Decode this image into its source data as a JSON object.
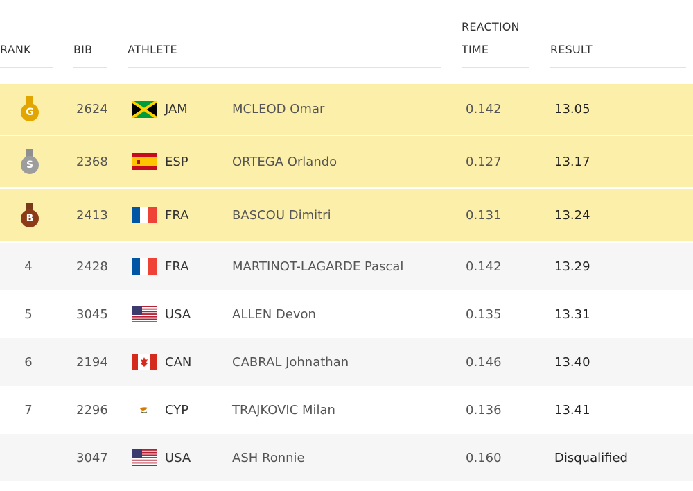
{
  "header": {
    "rank": "RANK",
    "bib": "BIB",
    "athlete": "ATHLETE",
    "reaction_line1": "REACTION",
    "reaction_line2": "TIME",
    "result": "RESULT"
  },
  "rows": [
    {
      "rank": "",
      "medal": "G",
      "bib": "2624",
      "noc": "JAM",
      "flag": "jam",
      "name": "MCLEOD Omar",
      "reaction": "0.142",
      "result": "13.05"
    },
    {
      "rank": "",
      "medal": "S",
      "bib": "2368",
      "noc": "ESP",
      "flag": "esp",
      "name": "ORTEGA Orlando",
      "reaction": "0.127",
      "result": "13.17"
    },
    {
      "rank": "",
      "medal": "B",
      "bib": "2413",
      "noc": "FRA",
      "flag": "fra",
      "name": "BASCOU Dimitri",
      "reaction": "0.131",
      "result": "13.24"
    },
    {
      "rank": "4",
      "bib": "2428",
      "noc": "FRA",
      "flag": "fra",
      "name": "MARTINOT-LAGARDE Pascal",
      "reaction": "0.142",
      "result": "13.29"
    },
    {
      "rank": "5",
      "bib": "3045",
      "noc": "USA",
      "flag": "usa",
      "name": "ALLEN Devon",
      "reaction": "0.135",
      "result": "13.31"
    },
    {
      "rank": "6",
      "bib": "2194",
      "noc": "CAN",
      "flag": "can",
      "name": "CABRAL Johnathan",
      "reaction": "0.146",
      "result": "13.40"
    },
    {
      "rank": "7",
      "bib": "2296",
      "noc": "CYP",
      "flag": "cyp",
      "name": "TRAJKOVIC Milan",
      "reaction": "0.136",
      "result": "13.41"
    },
    {
      "rank": "",
      "bib": "3047",
      "noc": "USA",
      "flag": "usa",
      "name": "ASH Ronnie",
      "reaction": "0.160",
      "result": "Disqualified"
    }
  ],
  "colors": {
    "medal_row_bg": "#fcefaa",
    "alt_row_bg": "#f6f6f6",
    "gold": "#e3a500",
    "silver": "#9d9d9d",
    "bronze": "#8d3a16"
  }
}
